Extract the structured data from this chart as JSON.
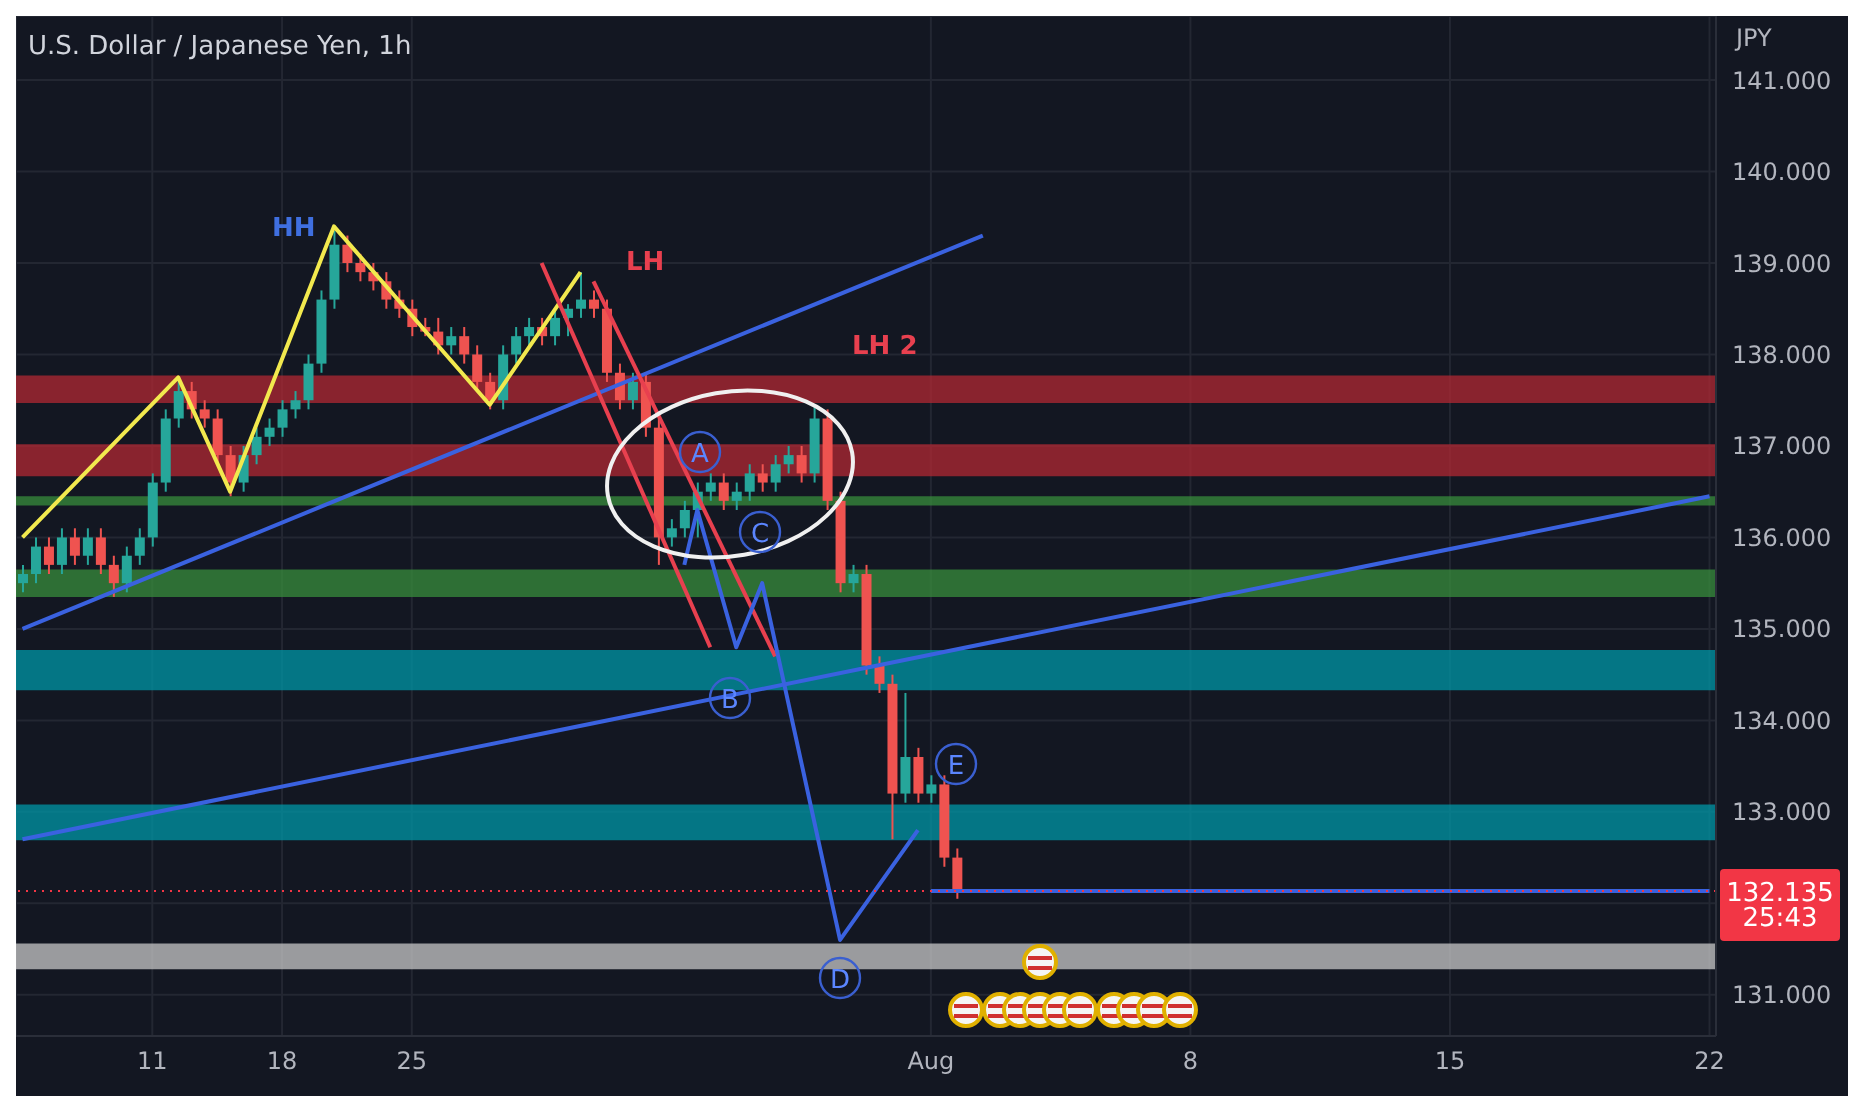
{
  "chart_data": {
    "type": "candlestick",
    "title": "U.S. Dollar / Japanese Yen, 1h",
    "ylabel": "JPY",
    "categories": [
      null,
      null,
      null,
      null,
      null,
      null,
      null,
      null,
      null,
      null,
      "11",
      null,
      null,
      null,
      null,
      null,
      null,
      null,
      null,
      null,
      "18",
      null,
      null,
      null,
      null,
      null,
      null,
      null,
      null,
      null,
      "25",
      null,
      null,
      null,
      null,
      null,
      null,
      null,
      null,
      null,
      null,
      null,
      null,
      null,
      null,
      null,
      null,
      null,
      null,
      null,
      null,
      null,
      null,
      null,
      null,
      null,
      null,
      null,
      null,
      null,
      null,
      null,
      null,
      null,
      null,
      null,
      null,
      null,
      null,
      null,
      "Aug",
      null,
      null,
      null,
      null,
      null,
      null,
      null,
      null,
      null,
      null,
      null,
      null,
      null,
      null,
      null,
      null,
      null,
      null,
      null,
      "8",
      null,
      null,
      null,
      null,
      null,
      null,
      null,
      null,
      null,
      null,
      null,
      null,
      null,
      null,
      null,
      null,
      null,
      null,
      null,
      "15",
      null,
      null,
      null,
      null,
      null,
      null,
      null,
      null,
      null,
      null,
      null,
      null,
      null,
      null,
      null,
      null,
      null,
      null,
      null,
      "22"
    ],
    "ohlc": [
      [
        135.5,
        135.7,
        135.4,
        135.6
      ],
      [
        135.6,
        136.0,
        135.5,
        135.9
      ],
      [
        135.9,
        136.0,
        135.6,
        135.7
      ],
      [
        135.7,
        136.1,
        135.6,
        136.0
      ],
      [
        136.0,
        136.1,
        135.7,
        135.8
      ],
      [
        135.8,
        136.1,
        135.7,
        136.0
      ],
      [
        136.0,
        136.1,
        135.6,
        135.7
      ],
      [
        135.7,
        135.8,
        135.35,
        135.5
      ],
      [
        135.5,
        135.9,
        135.4,
        135.8
      ],
      [
        135.8,
        136.1,
        135.7,
        136.0
      ],
      [
        136.0,
        136.7,
        135.9,
        136.6
      ],
      [
        136.6,
        137.4,
        136.5,
        137.3
      ],
      [
        137.3,
        137.75,
        137.2,
        137.6
      ],
      [
        137.6,
        137.7,
        137.3,
        137.4
      ],
      [
        137.4,
        137.5,
        137.2,
        137.3
      ],
      [
        137.3,
        137.4,
        136.8,
        136.9
      ],
      [
        136.9,
        137.0,
        136.45,
        136.6
      ],
      [
        136.6,
        137.0,
        136.5,
        136.9
      ],
      [
        136.9,
        137.2,
        136.8,
        137.1
      ],
      [
        137.1,
        137.3,
        137.0,
        137.2
      ],
      [
        137.2,
        137.5,
        137.1,
        137.4
      ],
      [
        137.4,
        137.6,
        137.3,
        137.5
      ],
      [
        137.5,
        138.0,
        137.4,
        137.9
      ],
      [
        137.9,
        138.7,
        137.8,
        138.6
      ],
      [
        138.6,
        139.35,
        138.5,
        139.2
      ],
      [
        139.2,
        139.3,
        138.9,
        139.0
      ],
      [
        139.0,
        139.1,
        138.8,
        138.9
      ],
      [
        138.9,
        139.0,
        138.7,
        138.8
      ],
      [
        138.8,
        138.9,
        138.5,
        138.6
      ],
      [
        138.6,
        138.7,
        138.4,
        138.5
      ],
      [
        138.5,
        138.6,
        138.2,
        138.3
      ],
      [
        138.3,
        138.4,
        138.2,
        138.25
      ],
      [
        138.25,
        138.4,
        138.0,
        138.1
      ],
      [
        138.1,
        138.3,
        138.0,
        138.2
      ],
      [
        138.2,
        138.3,
        137.9,
        138.0
      ],
      [
        138.0,
        138.1,
        137.6,
        137.7
      ],
      [
        137.7,
        137.8,
        137.4,
        137.5
      ],
      [
        137.5,
        138.1,
        137.4,
        138.0
      ],
      [
        138.0,
        138.3,
        137.9,
        138.2
      ],
      [
        138.2,
        138.4,
        138.1,
        138.3
      ],
      [
        138.3,
        138.4,
        138.1,
        138.2
      ],
      [
        138.2,
        138.5,
        138.1,
        138.4
      ],
      [
        138.4,
        138.55,
        138.2,
        138.5
      ],
      [
        138.5,
        138.9,
        138.4,
        138.6
      ],
      [
        138.6,
        138.7,
        138.4,
        138.5
      ],
      [
        138.5,
        138.6,
        137.7,
        137.8
      ],
      [
        137.8,
        137.9,
        137.4,
        137.5
      ],
      [
        137.5,
        137.8,
        137.4,
        137.7
      ],
      [
        137.7,
        137.8,
        137.1,
        137.2
      ],
      [
        137.2,
        137.3,
        135.7,
        136.0
      ],
      [
        136.0,
        136.2,
        135.9,
        136.1
      ],
      [
        136.1,
        136.4,
        136.0,
        136.3
      ],
      [
        136.3,
        136.6,
        136.0,
        136.5
      ],
      [
        136.5,
        136.7,
        136.4,
        136.6
      ],
      [
        136.6,
        136.7,
        136.3,
        136.4
      ],
      [
        136.4,
        136.6,
        136.3,
        136.5
      ],
      [
        136.5,
        136.8,
        136.4,
        136.7
      ],
      [
        136.7,
        136.8,
        136.5,
        136.6
      ],
      [
        136.6,
        136.9,
        136.5,
        136.8
      ],
      [
        136.8,
        137.0,
        136.7,
        136.9
      ],
      [
        136.9,
        137.0,
        136.6,
        136.7
      ],
      [
        136.7,
        137.45,
        136.6,
        137.3
      ],
      [
        137.3,
        137.4,
        136.3,
        136.4
      ],
      [
        136.4,
        136.5,
        135.4,
        135.5
      ],
      [
        135.5,
        135.7,
        135.4,
        135.6
      ],
      [
        135.6,
        135.7,
        134.5,
        134.6
      ],
      [
        134.6,
        134.7,
        134.3,
        134.4
      ],
      [
        134.4,
        134.5,
        132.7,
        133.2
      ],
      [
        133.2,
        134.3,
        133.1,
        133.6
      ],
      [
        133.6,
        133.7,
        133.1,
        133.2
      ],
      [
        133.2,
        133.4,
        133.1,
        133.3
      ],
      [
        133.3,
        133.4,
        132.4,
        132.5
      ],
      [
        132.5,
        132.6,
        132.05,
        132.135
      ],
      null,
      null,
      null,
      null,
      null,
      null,
      null,
      null,
      null,
      null,
      null,
      null,
      null,
      null,
      null,
      null,
      null,
      null,
      null,
      null,
      null,
      null,
      null,
      null,
      null,
      null,
      null,
      null,
      null,
      null,
      null,
      null,
      null,
      null,
      null,
      null,
      null,
      null,
      null,
      null,
      null,
      null,
      null,
      null,
      null,
      null,
      null,
      null,
      null,
      null,
      null,
      null,
      null,
      null,
      null,
      null,
      null,
      null
    ],
    "series": [
      {
        "type": "line",
        "color": "#f2e94e",
        "values": [
          136.0,
          null,
          null,
          null,
          null,
          null,
          null,
          null,
          null,
          null,
          null,
          null,
          137.75,
          null,
          null,
          null,
          136.5,
          null,
          null,
          null,
          null,
          null,
          null,
          null,
          139.4,
          null,
          null,
          null,
          null,
          null,
          null,
          null,
          null,
          null,
          null,
          null,
          137.45,
          null,
          null,
          null,
          null,
          null,
          null,
          138.9,
          null,
          null,
          null,
          null,
          null,
          null,
          null,
          null,
          null,
          null,
          null,
          null,
          null,
          null,
          null,
          null,
          null,
          null,
          null,
          null,
          null,
          null,
          null,
          null,
          null,
          null,
          null,
          null,
          null,
          null,
          null,
          null,
          null,
          null,
          null,
          null,
          null,
          null,
          null,
          null,
          null,
          null,
          null,
          null,
          null,
          null,
          null,
          null,
          null,
          null,
          null,
          null,
          null,
          null,
          null,
          null,
          null,
          null,
          null,
          null,
          null,
          null,
          null,
          null,
          null,
          null,
          null,
          null,
          null,
          null,
          null,
          null,
          null,
          null,
          null,
          null,
          null,
          null,
          null,
          null,
          null,
          null,
          null,
          null,
          null,
          null,
          null
        ]
      },
      {
        "type": "line",
        "color": "#3a62e0",
        "values": [
          135.0,
          null,
          null,
          null,
          null,
          null,
          null,
          null,
          null,
          null,
          null,
          null,
          null,
          null,
          null,
          null,
          null,
          null,
          null,
          null,
          null,
          null,
          null,
          null,
          null,
          null,
          null,
          null,
          null,
          null,
          null,
          null,
          null,
          null,
          null,
          null,
          null,
          null,
          null,
          null,
          null,
          null,
          null,
          null,
          null,
          null,
          null,
          null,
          null,
          null,
          null,
          null,
          null,
          null,
          null,
          null,
          null,
          null,
          null,
          null,
          null,
          null,
          null,
          null,
          null,
          null,
          null,
          null,
          null,
          null,
          null,
          null,
          null,
          null,
          139.3,
          null,
          null,
          null,
          null,
          null,
          null,
          null,
          null,
          null,
          null,
          null,
          null,
          null,
          null,
          null,
          null,
          null,
          null,
          null,
          null,
          null,
          null,
          null,
          null,
          null,
          null,
          null,
          null,
          null,
          null,
          null,
          null,
          null,
          null,
          null,
          null,
          null,
          null,
          null,
          null,
          null,
          null,
          null,
          null,
          null,
          null,
          null,
          null,
          null,
          null,
          null,
          null,
          null,
          null,
          null,
          null
        ]
      },
      {
        "type": "line",
        "color": "#3a62e0",
        "values": [
          132.7,
          null,
          null,
          null,
          null,
          null,
          null,
          null,
          null,
          null,
          null,
          null,
          null,
          null,
          null,
          null,
          null,
          null,
          null,
          null,
          null,
          null,
          null,
          null,
          null,
          null,
          null,
          null,
          null,
          null,
          null,
          null,
          null,
          null,
          null,
          null,
          null,
          null,
          null,
          null,
          null,
          null,
          null,
          null,
          null,
          null,
          null,
          null,
          null,
          null,
          null,
          null,
          null,
          null,
          null,
          null,
          null,
          null,
          null,
          null,
          null,
          null,
          null,
          null,
          null,
          null,
          null,
          null,
          null,
          null,
          null,
          null,
          null,
          null,
          null,
          null,
          null,
          null,
          null,
          null,
          null,
          null,
          null,
          null,
          null,
          null,
          null,
          null,
          null,
          null,
          null,
          null,
          null,
          null,
          null,
          null,
          null,
          null,
          null,
          null,
          null,
          null,
          null,
          null,
          null,
          null,
          null,
          null,
          null,
          null,
          null,
          null,
          null,
          null,
          null,
          null,
          null,
          null,
          null,
          null,
          null,
          null,
          null,
          null,
          null,
          null,
          null,
          null,
          null,
          null,
          136.45
        ]
      },
      {
        "type": "line",
        "color": "#e8404f",
        "values": [
          null,
          null,
          null,
          null,
          null,
          null,
          null,
          null,
          null,
          null,
          null,
          null,
          null,
          null,
          null,
          null,
          null,
          null,
          null,
          null,
          null,
          null,
          null,
          null,
          null,
          null,
          null,
          null,
          null,
          null,
          null,
          null,
          null,
          null,
          null,
          null,
          null,
          null,
          null,
          null,
          139.0,
          null,
          null,
          null,
          null,
          null,
          null,
          null,
          null,
          null,
          null,
          null,
          null,
          134.8,
          null,
          null,
          null,
          null,
          null,
          null,
          null,
          null,
          null,
          null,
          null,
          null,
          null,
          null,
          null,
          null,
          null,
          null,
          null,
          null,
          null,
          null,
          null,
          null,
          null,
          null,
          null,
          null,
          null,
          null,
          null,
          null,
          null,
          null,
          null,
          null,
          null,
          null,
          null,
          null,
          null,
          null,
          null,
          null,
          null,
          null,
          null,
          null,
          null,
          null,
          null,
          null,
          null,
          null,
          null,
          null,
          null,
          null,
          null,
          null,
          null,
          null,
          null,
          null,
          null,
          null,
          null,
          null,
          null,
          null,
          null,
          null,
          null,
          null,
          null,
          null,
          null
        ]
      },
      {
        "type": "line",
        "color": "#e8404f",
        "values": [
          null,
          null,
          null,
          null,
          null,
          null,
          null,
          null,
          null,
          null,
          null,
          null,
          null,
          null,
          null,
          null,
          null,
          null,
          null,
          null,
          null,
          null,
          null,
          null,
          null,
          null,
          null,
          null,
          null,
          null,
          null,
          null,
          null,
          null,
          null,
          null,
          null,
          null,
          null,
          null,
          null,
          null,
          null,
          null,
          138.8,
          null,
          null,
          null,
          null,
          null,
          null,
          null,
          null,
          null,
          null,
          null,
          null,
          null,
          134.7,
          null,
          null,
          null,
          null,
          null,
          null,
          null,
          null,
          null,
          null,
          null,
          null,
          null,
          null,
          null,
          null,
          null,
          null,
          null,
          null,
          null,
          null,
          null,
          null,
          null,
          null,
          null,
          null,
          null,
          null,
          null,
          null,
          null,
          null,
          null,
          null,
          null,
          null,
          null,
          null,
          null,
          null,
          null,
          null,
          null,
          null,
          null,
          null,
          null,
          null,
          null,
          null,
          null,
          null,
          null,
          null,
          null,
          null,
          null,
          null,
          null,
          null,
          null,
          null,
          null,
          null,
          null,
          null,
          null,
          null,
          null,
          null
        ]
      },
      {
        "type": "line",
        "color": "#3a62e0",
        "values": [
          null,
          null,
          null,
          null,
          null,
          null,
          null,
          null,
          null,
          null,
          null,
          null,
          null,
          null,
          null,
          null,
          null,
          null,
          null,
          null,
          null,
          null,
          null,
          null,
          null,
          null,
          null,
          null,
          null,
          null,
          null,
          null,
          null,
          null,
          null,
          null,
          null,
          null,
          null,
          null,
          null,
          null,
          null,
          null,
          null,
          null,
          null,
          null,
          null,
          null,
          null,
          135.7,
          136.3,
          null,
          null,
          134.8,
          null,
          135.5,
          null,
          null,
          null,
          null,
          null,
          131.6,
          null,
          null,
          null,
          null,
          null,
          132.8,
          null,
          null,
          null,
          null,
          null,
          null,
          null,
          null,
          null,
          null,
          null,
          null,
          null,
          null,
          null,
          null,
          null,
          null,
          null,
          null,
          null,
          null,
          null,
          null,
          null,
          null,
          null,
          null,
          null,
          null,
          null,
          null,
          null,
          null,
          null,
          null,
          null,
          null,
          null,
          null,
          null,
          null,
          null,
          null,
          null,
          null,
          null,
          null,
          null,
          null,
          null,
          null,
          null,
          null,
          null,
          null,
          null,
          null,
          null,
          null,
          null
        ]
      },
      {
        "type": "line",
        "color": "#3a62e0",
        "values": [
          null,
          null,
          null,
          null,
          null,
          null,
          null,
          null,
          null,
          null,
          null,
          null,
          null,
          null,
          null,
          null,
          null,
          null,
          null,
          null,
          null,
          null,
          null,
          null,
          null,
          null,
          null,
          null,
          null,
          null,
          null,
          null,
          null,
          null,
          null,
          null,
          null,
          null,
          null,
          null,
          null,
          null,
          null,
          null,
          null,
          null,
          null,
          null,
          null,
          null,
          null,
          null,
          null,
          null,
          null,
          null,
          null,
          null,
          null,
          null,
          null,
          null,
          null,
          null,
          null,
          null,
          null,
          null,
          null,
          null,
          132.135,
          132.135,
          132.135,
          132.135,
          132.135,
          132.135,
          132.135,
          132.135,
          132.135,
          132.135,
          132.135,
          132.135,
          132.135,
          132.135,
          132.135,
          132.135,
          132.135,
          132.135,
          132.135,
          132.135,
          132.135,
          132.135,
          132.135,
          132.135,
          132.135,
          132.135,
          132.135,
          132.135,
          132.135,
          132.135,
          132.135,
          132.135,
          132.135,
          132.135,
          132.135,
          132.135,
          132.135,
          132.135,
          132.135,
          132.135,
          132.135,
          132.135,
          132.135,
          132.135,
          132.135,
          132.135,
          132.135,
          132.135,
          132.135,
          132.135,
          132.135,
          132.135,
          132.135,
          132.135,
          132.135,
          132.135,
          132.135,
          132.135,
          132.135,
          132.135,
          132.135
        ]
      }
    ],
    "ylim": [
      130.55,
      141.7
    ],
    "yticks": [
      {
        "value": 131,
        "label": "131.000"
      },
      {
        "value": 132,
        "label": null
      },
      {
        "value": 133,
        "label": "133.000"
      },
      {
        "value": 134,
        "label": "134.000"
      },
      {
        "value": 135,
        "label": "135.000"
      },
      {
        "value": 136,
        "label": "136.000"
      },
      {
        "value": 137,
        "label": "137.000"
      },
      {
        "value": 138,
        "label": "138.000"
      },
      {
        "value": 139,
        "label": "139.000"
      },
      {
        "value": 140,
        "label": "140.000"
      },
      {
        "value": 141,
        "label": "141.000"
      }
    ],
    "bands": [
      {
        "axis": "y",
        "from": 137.47,
        "to": 137.77,
        "color": "#b22833"
      },
      {
        "axis": "y",
        "from": 136.67,
        "to": 137.02,
        "color": "#b22833"
      },
      {
        "axis": "y",
        "from": 136.35,
        "to": 136.45,
        "color": "#388e3c"
      },
      {
        "axis": "y",
        "from": 135.35,
        "to": 135.65,
        "color": "#388e3c"
      },
      {
        "axis": "y",
        "from": 134.33,
        "to": 134.77,
        "color": "#0097a7"
      },
      {
        "axis": "y",
        "from": 132.69,
        "to": 133.08,
        "color": "#0097a7"
      },
      {
        "axis": "y",
        "from": 131.28,
        "to": 131.56,
        "color": "#c8c8c8"
      }
    ],
    "ref_lines": [
      {
        "axis": "y",
        "value": 132.135,
        "label": "132.135",
        "color": "#f23645",
        "line_style": "dotted"
      }
    ],
    "annotations": [
      "HH",
      "LH",
      "LH 2",
      "A",
      "B",
      "C",
      "D",
      "E",
      "25:43"
    ],
    "grid": true
  }
}
